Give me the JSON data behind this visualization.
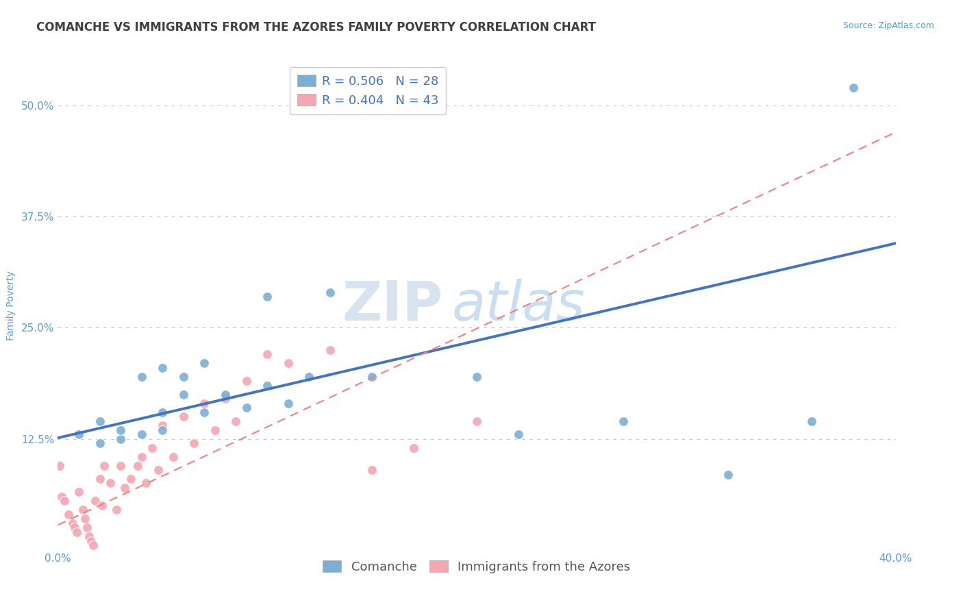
{
  "title": "COMANCHE VS IMMIGRANTS FROM THE AZORES FAMILY POVERTY CORRELATION CHART",
  "source_text": "Source: ZipAtlas.com",
  "ylabel": "Family Poverty",
  "xlim": [
    0.0,
    0.4
  ],
  "ylim": [
    0.0,
    0.55
  ],
  "xticks": [
    0.0,
    0.05,
    0.1,
    0.15,
    0.2,
    0.25,
    0.3,
    0.35,
    0.4
  ],
  "xticklabels": [
    "0.0%",
    "",
    "",
    "",
    "",
    "",
    "",
    "",
    "40.0%"
  ],
  "ytick_values": [
    0.0,
    0.125,
    0.25,
    0.375,
    0.5
  ],
  "ytick_labels": [
    "",
    "12.5%",
    "25.0%",
    "37.5%",
    "50.0%"
  ],
  "legend_blue_r": "R = 0.506",
  "legend_blue_n": "N = 28",
  "legend_pink_r": "R = 0.404",
  "legend_pink_n": "N = 43",
  "legend_blue_label": "Comanche",
  "legend_pink_label": "Immigrants from the Azores",
  "watermark_zip": "ZIP",
  "watermark_atlas": "atlas",
  "blue_color": "#7BAFD4",
  "pink_color": "#F4A7B3",
  "blue_line_color": "#4472C4",
  "pink_line_color": "#F48080",
  "title_color": "#404040",
  "axis_label_color": "#5B9BD5",
  "tick_label_color": "#5B9BD5",
  "background_color": "#FFFFFF",
  "blue_scatter_x": [
    0.01,
    0.02,
    0.02,
    0.03,
    0.03,
    0.04,
    0.04,
    0.05,
    0.05,
    0.05,
    0.06,
    0.06,
    0.07,
    0.07,
    0.08,
    0.09,
    0.1,
    0.1,
    0.11,
    0.12,
    0.13,
    0.15,
    0.2,
    0.22,
    0.27,
    0.32,
    0.36,
    0.38
  ],
  "blue_scatter_y": [
    0.13,
    0.12,
    0.145,
    0.125,
    0.135,
    0.13,
    0.195,
    0.135,
    0.155,
    0.205,
    0.175,
    0.195,
    0.155,
    0.21,
    0.175,
    0.16,
    0.185,
    0.285,
    0.165,
    0.195,
    0.29,
    0.195,
    0.195,
    0.13,
    0.145,
    0.085,
    0.145,
    0.52
  ],
  "pink_scatter_x": [
    0.001,
    0.002,
    0.003,
    0.005,
    0.007,
    0.008,
    0.009,
    0.01,
    0.012,
    0.013,
    0.014,
    0.015,
    0.016,
    0.017,
    0.018,
    0.02,
    0.021,
    0.022,
    0.025,
    0.028,
    0.03,
    0.032,
    0.035,
    0.038,
    0.04,
    0.042,
    0.045,
    0.048,
    0.05,
    0.055,
    0.06,
    0.065,
    0.07,
    0.075,
    0.08,
    0.085,
    0.09,
    0.1,
    0.11,
    0.13,
    0.15,
    0.17,
    0.2
  ],
  "pink_scatter_y": [
    0.095,
    0.06,
    0.055,
    0.04,
    0.03,
    0.025,
    0.02,
    0.065,
    0.045,
    0.035,
    0.025,
    0.015,
    0.01,
    0.005,
    0.055,
    0.08,
    0.05,
    0.095,
    0.075,
    0.045,
    0.095,
    0.07,
    0.08,
    0.095,
    0.105,
    0.075,
    0.115,
    0.09,
    0.14,
    0.105,
    0.15,
    0.12,
    0.165,
    0.135,
    0.17,
    0.145,
    0.19,
    0.22,
    0.21,
    0.225,
    0.09,
    0.115,
    0.145
  ],
  "blue_line_x0": 0.0,
  "blue_line_y0": 0.126,
  "blue_line_x1": 0.4,
  "blue_line_y1": 0.345,
  "pink_line_x0": 0.0,
  "pink_line_y0": 0.028,
  "pink_line_x1": 0.4,
  "pink_line_y1": 0.47,
  "title_fontsize": 12,
  "axis_fontsize": 10,
  "tick_fontsize": 11,
  "legend_fontsize": 13,
  "watermark_fontsize_zip": 58,
  "watermark_fontsize_atlas": 58,
  "watermark_color_zip": "#B8CCE4",
  "watermark_color_atlas": "#9DC3E6",
  "watermark_alpha": 0.55
}
